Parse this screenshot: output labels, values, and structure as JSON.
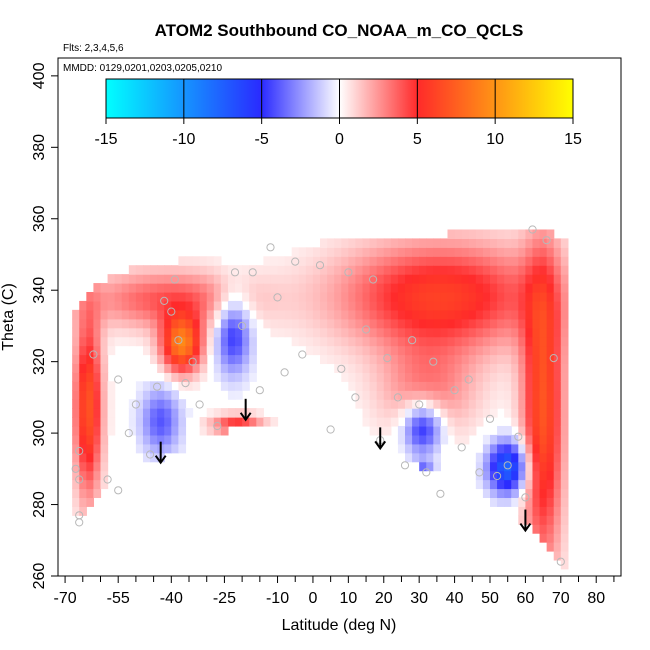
{
  "chart_data": {
    "type": "heatmap",
    "title": "ATOM2 Southbound CO_NOAA_m_CO_QCLS",
    "flights_note": "Flts: 2,3,4,5,6",
    "dates_note": "MMDD: 0129,0201,0203,0205,0210",
    "xlabel": "Latitude (deg N)",
    "ylabel": "Theta (C)",
    "xlim": [
      -72,
      87
    ],
    "ylim": [
      260,
      405
    ],
    "x_ticks": [
      -70,
      -55,
      -40,
      -25,
      -10,
      0,
      10,
      20,
      30,
      40,
      50,
      60,
      70,
      80
    ],
    "x_tick_labels": [
      "-70",
      "-55",
      "-40",
      "-25",
      "-10",
      "0",
      "10",
      "20",
      "30",
      "40",
      "50",
      "60",
      "70",
      "80"
    ],
    "x_minor_ticks": [
      -65,
      -60,
      -50,
      -45,
      -35,
      -30,
      -20,
      -15,
      -5,
      5,
      15,
      25,
      35,
      45,
      55,
      65,
      75,
      85
    ],
    "y_ticks": [
      260,
      280,
      300,
      320,
      340,
      360,
      380,
      400
    ],
    "y_tick_labels": [
      "260",
      "280",
      "300",
      "320",
      "340",
      "360",
      "380",
      "400"
    ],
    "colorbar": {
      "min": -15,
      "max": 15,
      "ticks": [
        -15,
        -10,
        -5,
        0,
        5,
        10,
        15
      ],
      "tick_labels": [
        "-15",
        "-10",
        "-5",
        "0",
        "5",
        "10",
        "15"
      ],
      "color_stops": [
        {
          "value": -15,
          "color": "#00ffff"
        },
        {
          "value": -5,
          "color": "#2a2aff"
        },
        {
          "value": 0,
          "color": "#ffffff"
        },
        {
          "value": 5,
          "color": "#ff2a2a"
        },
        {
          "value": 15,
          "color": "#ffff00"
        }
      ]
    },
    "field_regions": [
      {
        "name": "high-lat-southern-edge",
        "value": 7,
        "lat": [
          -67,
          -60
        ],
        "theta": [
          285,
          330
        ]
      },
      {
        "name": "southern-upper-band",
        "value": 4,
        "lat": [
          -62,
          -20
        ],
        "theta": [
          330,
          345
        ]
      },
      {
        "name": "blob-lat-minus-38",
        "value": 9,
        "lat": [
          -42,
          -32
        ],
        "theta": [
          318,
          332
        ]
      },
      {
        "name": "cluster-lat-minus-45",
        "value": -4,
        "lat": [
          -48,
          -38
        ],
        "theta": [
          295,
          312
        ]
      },
      {
        "name": "streak-lat-minus-25",
        "value": -5,
        "lat": [
          -27,
          -18
        ],
        "theta": [
          318,
          338
        ]
      },
      {
        "name": "band-lat-minus-20",
        "value": 5,
        "lat": [
          -28,
          -15
        ],
        "theta": [
          300,
          305
        ]
      },
      {
        "name": "northern-upper-band",
        "value": 6,
        "lat": [
          10,
          62
        ],
        "theta": [
          325,
          352
        ]
      },
      {
        "name": "northern-edge",
        "value": 7,
        "lat": [
          60,
          70
        ],
        "theta": [
          268,
          345
        ]
      },
      {
        "name": "blob-lat-30",
        "value": -6,
        "lat": [
          26,
          36
        ],
        "theta": [
          295,
          308
        ]
      },
      {
        "name": "blob-lat-55",
        "value": -8,
        "lat": [
          50,
          60
        ],
        "theta": [
          284,
          297
        ]
      },
      {
        "name": "blob-lat-32-low",
        "value": -4,
        "lat": [
          28,
          34
        ],
        "theta": [
          286,
          292
        ]
      },
      {
        "name": "mid-lat-north",
        "value": 3,
        "lat": [
          20,
          45
        ],
        "theta": [
          300,
          325
        ]
      }
    ],
    "sample_points": [
      {
        "lat": -66,
        "theta": 295
      },
      {
        "lat": -67,
        "theta": 290
      },
      {
        "lat": -66,
        "theta": 287
      },
      {
        "lat": -66,
        "theta": 277
      },
      {
        "lat": -66,
        "theta": 275
      },
      {
        "lat": -62,
        "theta": 322
      },
      {
        "lat": -58,
        "theta": 287
      },
      {
        "lat": -55,
        "theta": 284
      },
      {
        "lat": -55,
        "theta": 315
      },
      {
        "lat": -52,
        "theta": 300
      },
      {
        "lat": -50,
        "theta": 308
      },
      {
        "lat": -46,
        "theta": 294
      },
      {
        "lat": -44,
        "theta": 313
      },
      {
        "lat": -42,
        "theta": 337
      },
      {
        "lat": -40,
        "theta": 334
      },
      {
        "lat": -39,
        "theta": 343
      },
      {
        "lat": -38,
        "theta": 326
      },
      {
        "lat": -36,
        "theta": 314
      },
      {
        "lat": -34,
        "theta": 320
      },
      {
        "lat": -32,
        "theta": 308
      },
      {
        "lat": -27,
        "theta": 302
      },
      {
        "lat": -22,
        "theta": 345
      },
      {
        "lat": -20,
        "theta": 330
      },
      {
        "lat": -17,
        "theta": 345
      },
      {
        "lat": -15,
        "theta": 312
      },
      {
        "lat": -12,
        "theta": 352
      },
      {
        "lat": -10,
        "theta": 338
      },
      {
        "lat": -8,
        "theta": 317
      },
      {
        "lat": -5,
        "theta": 348
      },
      {
        "lat": -3,
        "theta": 322
      },
      {
        "lat": 2,
        "theta": 347
      },
      {
        "lat": 5,
        "theta": 301
      },
      {
        "lat": 8,
        "theta": 318
      },
      {
        "lat": 10,
        "theta": 345
      },
      {
        "lat": 12,
        "theta": 310
      },
      {
        "lat": 15,
        "theta": 329
      },
      {
        "lat": 17,
        "theta": 343
      },
      {
        "lat": 19,
        "theta": 298
      },
      {
        "lat": 21,
        "theta": 321
      },
      {
        "lat": 24,
        "theta": 310
      },
      {
        "lat": 26,
        "theta": 291
      },
      {
        "lat": 28,
        "theta": 326
      },
      {
        "lat": 30,
        "theta": 308
      },
      {
        "lat": 32,
        "theta": 289
      },
      {
        "lat": 34,
        "theta": 320
      },
      {
        "lat": 36,
        "theta": 283
      },
      {
        "lat": 40,
        "theta": 312
      },
      {
        "lat": 42,
        "theta": 296
      },
      {
        "lat": 44,
        "theta": 315
      },
      {
        "lat": 47,
        "theta": 289
      },
      {
        "lat": 50,
        "theta": 304
      },
      {
        "lat": 52,
        "theta": 288
      },
      {
        "lat": 55,
        "theta": 291
      },
      {
        "lat": 58,
        "theta": 299
      },
      {
        "lat": 60,
        "theta": 282
      },
      {
        "lat": 62,
        "theta": 357
      },
      {
        "lat": 66,
        "theta": 354
      },
      {
        "lat": 68,
        "theta": 321
      },
      {
        "lat": 70,
        "theta": 264
      }
    ],
    "arrows": [
      {
        "lat": -43,
        "theta": 292,
        "direction": "down"
      },
      {
        "lat": -19,
        "theta": 304,
        "direction": "down"
      },
      {
        "lat": 19,
        "theta": 296,
        "direction": "down"
      },
      {
        "lat": 60,
        "theta": 273,
        "direction": "down"
      }
    ]
  }
}
